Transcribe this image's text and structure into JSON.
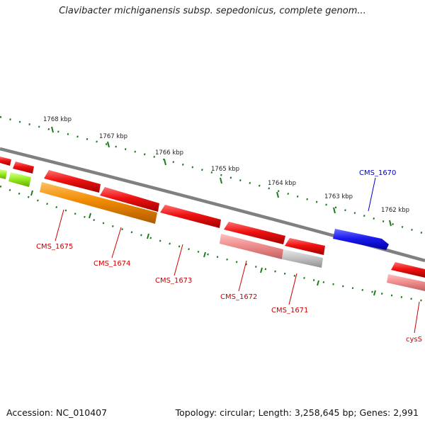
{
  "title": "Clavibacter michiganensis subsp. sepedonicus, complete genom...",
  "footer": {
    "accession": "Accession: NC_010407",
    "summary": "Topology: circular; Length: 3,258,645 bp; Genes: 2,991"
  },
  "colors": {
    "red": "#ee1111",
    "orange": "#f08a00",
    "pink": "#f08f8f",
    "grey": "#c0c0c0",
    "green": "#99ee22",
    "blue": "#1a1aee",
    "backbone": "#808080",
    "tick": "#1f7a1f",
    "label_red": "#cc0000",
    "label_blue": "#0000cc"
  },
  "ticks": [
    {
      "label": "1768 kbp"
    },
    {
      "label": "1767 kbp"
    },
    {
      "label": "1766 kbp"
    },
    {
      "label": "1765 kbp"
    },
    {
      "label": "1764 kbp"
    },
    {
      "label": "1763 kbp"
    },
    {
      "label": "1762 kbp"
    }
  ],
  "genes": [
    {
      "name": "CMS_1675"
    },
    {
      "name": "CMS_1674"
    },
    {
      "name": "CMS_1673"
    },
    {
      "name": "CMS_1672"
    },
    {
      "name": "CMS_1671"
    },
    {
      "name": "CMS_1670"
    },
    {
      "name": "cysS"
    }
  ]
}
